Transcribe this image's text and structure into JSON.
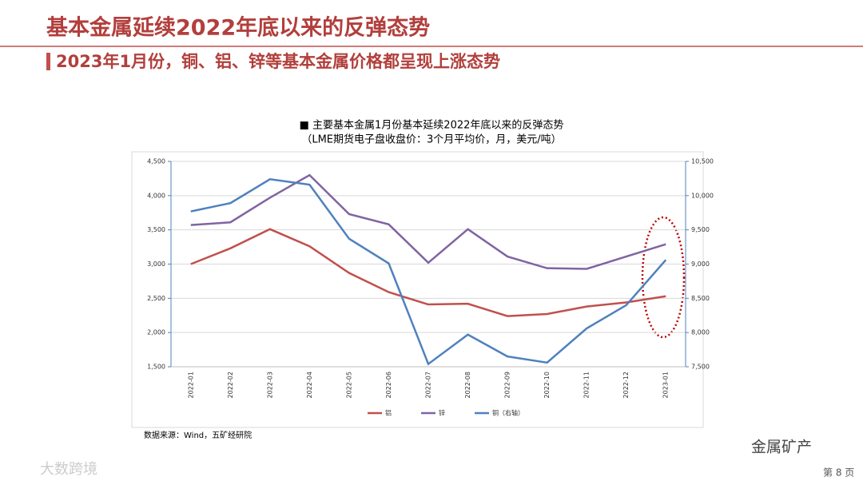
{
  "header": {
    "title": "基本金属延续2022年底以来的反弹态势",
    "subtitle": "2023年1月份，铜、铝、锌等基本金属价格都呈现上涨态势"
  },
  "chart_data": {
    "type": "line",
    "title": "■  主要基本金属1月份基本延续2022年底以来的反弹态势",
    "subtitle": "（LME期货电子盘收盘价：3个月平均价，月，美元/吨）",
    "categories": [
      "2022-01",
      "2022-02",
      "2022-03",
      "2022-04",
      "2022-05",
      "2022-06",
      "2022-07",
      "2022-08",
      "2022-09",
      "2022-10",
      "2022-11",
      "2022-12",
      "2023-01"
    ],
    "series": [
      {
        "name": "铝",
        "color": "#c0504d",
        "values": [
          3000,
          3230,
          3510,
          3260,
          2870,
          2590,
          2410,
          2420,
          2240,
          2270,
          2380,
          2440,
          2530
        ]
      },
      {
        "name": "锌",
        "color": "#8064a2",
        "values": [
          3570,
          3610,
          3970,
          4300,
          3730,
          3580,
          3020,
          3510,
          3110,
          2940,
          2930,
          3110,
          3290
        ]
      },
      {
        "name": "铜（右轴）",
        "color": "#4f81bd",
        "axis": "y2",
        "values": [
          9770,
          9890,
          10240,
          10160,
          9370,
          9010,
          7540,
          7970,
          7650,
          7560,
          8060,
          8400,
          9060
        ]
      }
    ],
    "ylim": [
      1500,
      4500
    ],
    "yticks": [
      {
        "value": 1500,
        "label": "1,500"
      },
      {
        "value": 2000,
        "label": "2,000"
      },
      {
        "value": 2500,
        "label": "2,500"
      },
      {
        "value": 3000,
        "label": "3,000"
      },
      {
        "value": 3500,
        "label": "3,500"
      },
      {
        "value": 4000,
        "label": "4,000"
      },
      {
        "value": 4500,
        "label": "4,500"
      }
    ],
    "y2lim": [
      7500,
      10500
    ],
    "y2ticks": [
      {
        "value": 7500,
        "label": "7,500"
      },
      {
        "value": 8000,
        "label": "8,000"
      },
      {
        "value": 8500,
        "label": "8,500"
      },
      {
        "value": 9000,
        "label": "9,000"
      },
      {
        "value": 9500,
        "label": "9,500"
      },
      {
        "value": 10000,
        "label": "10,000"
      },
      {
        "value": 10500,
        "label": "10,500"
      }
    ],
    "grid": true,
    "legend": "bottom",
    "source": "数据来源：Wind，五矿经研院"
  },
  "footer": {
    "watermark": "金属矿产",
    "brand": "大数跨境",
    "page": "第 8 页"
  }
}
